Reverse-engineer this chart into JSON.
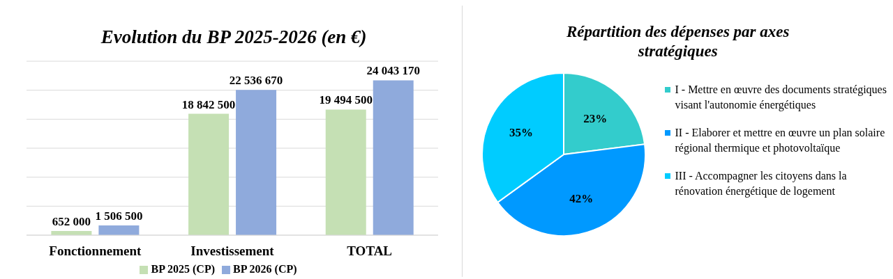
{
  "chart_data": [
    {
      "type": "bar",
      "title": "Evolution du BP 2025-2026 (en €)",
      "categories": [
        "Fonctionnement",
        "Investissement",
        "TOTAL"
      ],
      "series": [
        {
          "name": "BP 2025 (CP)",
          "color": "#c5e0b4",
          "values": [
            652000,
            18842500,
            19494500
          ],
          "value_labels": [
            "652 000",
            "18 842 500",
            "19 494 500"
          ]
        },
        {
          "name": "BP 2026 (CP)",
          "color": "#8faadc",
          "values": [
            1506500,
            22536670,
            24043170
          ],
          "value_labels": [
            "1 506 500",
            "22 536 670",
            "24 043 170"
          ]
        }
      ],
      "grid": "y",
      "tick_labels": "x",
      "legend": "bottom"
    },
    {
      "type": "pie",
      "title": "Répartition des dépenses par axes stratégiques",
      "categories": [
        "I - Mettre en œuvre des documents stratégiques visant l'autonomie énergétiques",
        "II - Elaborer et mettre en œuvre un plan solaire régional thermique et photovoltaïque",
        "III - Accompagner les citoyens dans la rénovation énergétique de logement"
      ],
      "values": [
        23,
        42,
        35
      ],
      "colors": [
        "#33cccc",
        "#0099ff",
        "#00ccff"
      ],
      "value_labels": [
        "23%",
        "42%",
        "35%"
      ],
      "legend": "right"
    }
  ]
}
